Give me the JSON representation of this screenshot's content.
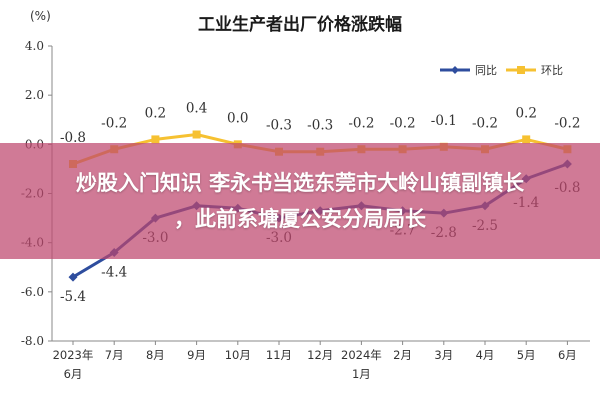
{
  "chart_data": {
    "type": "line",
    "title": "工业生产者出厂价格涨跌幅",
    "ylabel": "(%)",
    "xlabel": "",
    "ylim": [
      -8.0,
      4.0
    ],
    "yticks": [
      "4.0",
      "2.0",
      "0.0",
      "-2.0",
      "-4.0",
      "-6.0",
      "-8.0"
    ],
    "categories": [
      [
        "2023年",
        "6月"
      ],
      [
        "7月"
      ],
      [
        "8月"
      ],
      [
        "9月"
      ],
      [
        "10月"
      ],
      [
        "11月"
      ],
      [
        "12月"
      ],
      [
        "2024年",
        "1月"
      ],
      [
        "2月"
      ],
      [
        "3月"
      ],
      [
        "4月"
      ],
      [
        "5月"
      ],
      [
        "6月"
      ]
    ],
    "legend_position": "top-right",
    "grid": false,
    "series": [
      {
        "name": "同比",
        "color": "#2e4d9e",
        "values": [
          -5.4,
          -4.4,
          -3.0,
          -2.5,
          -2.6,
          -3.0,
          -2.7,
          -2.5,
          -2.7,
          -2.8,
          -2.5,
          -1.4,
          -0.8
        ],
        "labels": [
          "-5.4",
          "-4.4",
          "-3.0",
          "",
          "",
          "-3.0",
          "",
          "",
          "-2.7",
          "-2.8",
          "-2.5",
          "-1.4",
          "-0.8"
        ]
      },
      {
        "name": "环比",
        "color": "#f6c131",
        "values": [
          -0.8,
          -0.2,
          0.2,
          0.4,
          0.0,
          -0.3,
          -0.3,
          -0.2,
          -0.2,
          -0.1,
          -0.2,
          0.2,
          -0.2
        ],
        "labels": [
          "-0.8",
          "-0.2",
          "0.2",
          "0.4",
          "0.0",
          "-0.3",
          "-0.3",
          "-0.2",
          "-0.2",
          "-0.1",
          "-0.2",
          "0.2",
          "-0.2"
        ]
      }
    ]
  },
  "overlay": {
    "line1": "炒股入门知识 李永书当选东莞市大岭山镇副镇长",
    "line2": "，此前系塘厦公安分局局长"
  }
}
